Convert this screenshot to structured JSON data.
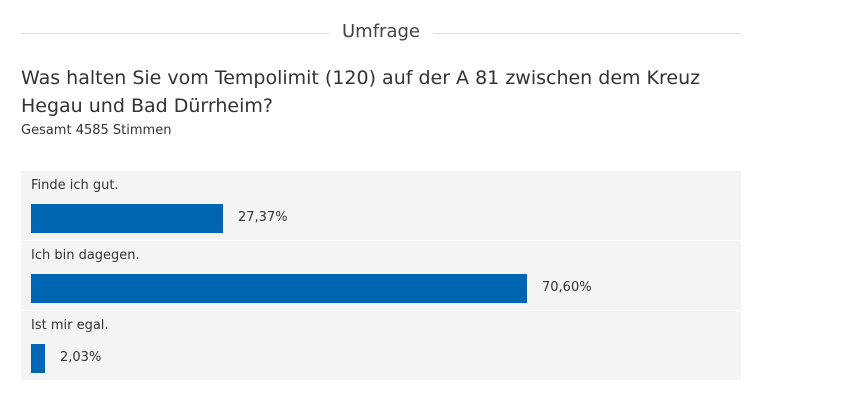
{
  "poll": {
    "header_title": "Umfrage",
    "question": "Was halten Sie vom Tempolimit (120) auf der A 81 zwischen dem Kreuz Hegau und Bad Dürrheim?",
    "total": "Gesamt 4585 Stimmen",
    "accent_color": "#0066b3",
    "options": [
      {
        "label": "Finde ich gut.",
        "percent": "27,37%",
        "value": 27.37
      },
      {
        "label": "Ich bin dagegen.",
        "percent": "70,60%",
        "value": 70.6
      },
      {
        "label": "Ist mir egal.",
        "percent": "2,03%",
        "value": 2.03
      }
    ]
  }
}
